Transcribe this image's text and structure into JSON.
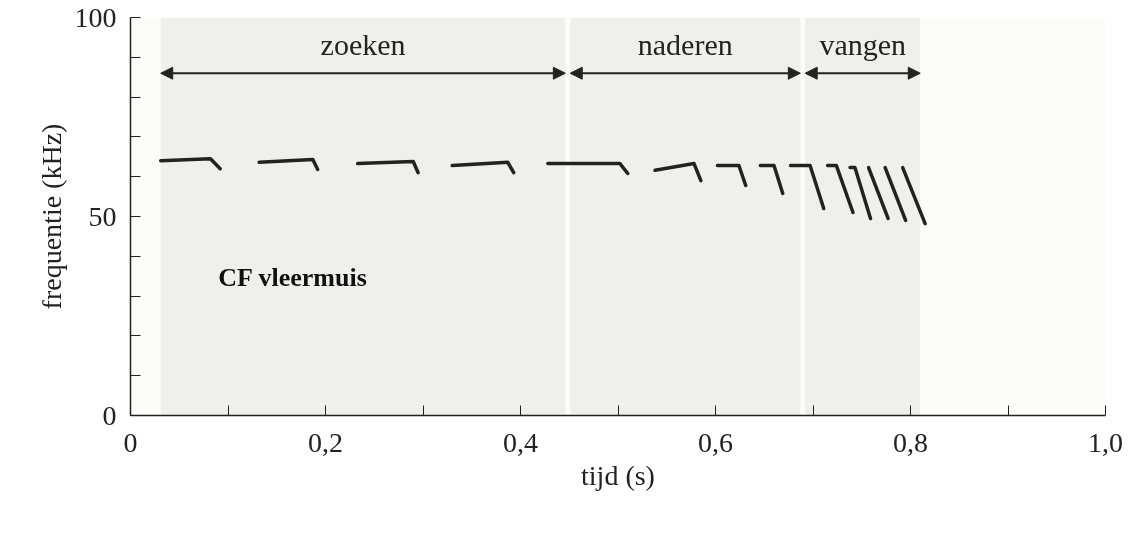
{
  "chart_data": {
    "type": "line",
    "xlabel": "tijd (s)",
    "ylabel": "frequentie (kHz)",
    "annotations": [
      "CF vleermuis"
    ],
    "xlim": [
      0,
      1.0
    ],
    "xticks": [
      0,
      {
        "value": 0.1,
        "label": null
      },
      {
        "value": 0.2,
        "label": "0,2"
      },
      {
        "value": 0.3,
        "label": null
      },
      {
        "value": 0.4,
        "label": "0,4"
      },
      {
        "value": 0.5,
        "label": null
      },
      {
        "value": 0.6,
        "label": "0,6"
      },
      {
        "value": 0.7,
        "label": null
      },
      {
        "value": 0.8,
        "label": "0,8"
      },
      {
        "value": 0.9,
        "label": null
      },
      {
        "value": 1.0,
        "label": "1,0"
      }
    ],
    "ylim": [
      0,
      100
    ],
    "yticks": [
      0,
      {
        "value": 10,
        "label": null
      },
      {
        "value": 20,
        "label": null
      },
      {
        "value": 30,
        "label": null
      },
      {
        "value": 40,
        "label": null
      },
      50,
      {
        "value": 60,
        "label": null
      },
      {
        "value": 70,
        "label": null
      },
      {
        "value": 80,
        "label": null
      },
      {
        "value": 90,
        "label": null
      },
      100
    ],
    "grid": false,
    "marker": "none",
    "line_style": "solid",
    "bands": [
      {
        "axis": "x",
        "from": 0.031,
        "to": 0.446,
        "label": "zoeken",
        "color": "#222222"
      },
      {
        "axis": "x",
        "from": 0.451,
        "to": 0.687,
        "label": "naderen",
        "color": "#222222"
      },
      {
        "axis": "x",
        "from": 0.692,
        "to": 0.81,
        "label": "vangen",
        "color": "#222222"
      }
    ],
    "series": [
      {
        "color": "#222222",
        "x": [
          0.031,
          0.082,
          0.092
        ],
        "values": [
          64,
          64.5,
          62
        ]
      },
      {
        "color": "#222222",
        "x": [
          0.132,
          0.187,
          0.192
        ],
        "values": [
          63.6,
          64.3,
          61.8
        ]
      },
      {
        "color": "#222222",
        "x": [
          0.233,
          0.29,
          0.295
        ],
        "values": [
          63.3,
          63.8,
          61
        ]
      },
      {
        "color": "#222222",
        "x": [
          0.33,
          0.387,
          0.393
        ],
        "values": [
          62.8,
          63.6,
          61
        ]
      },
      {
        "color": "#222222",
        "x": [
          0.428,
          0.502,
          0.51
        ],
        "values": [
          63.3,
          63.3,
          60.8
        ]
      },
      {
        "color": "#222222",
        "x": [
          0.538,
          0.578,
          0.585
        ],
        "values": [
          61.6,
          63.3,
          59
        ]
      },
      {
        "color": "#222222",
        "x": [
          0.602,
          0.624,
          0.631
        ],
        "values": [
          62.8,
          62.8,
          57.8
        ]
      },
      {
        "color": "#222222",
        "x": [
          0.646,
          0.66,
          0.669
        ],
        "values": [
          62.8,
          62.8,
          55.8
        ]
      },
      {
        "color": "#222222",
        "x": [
          0.677,
          0.697,
          0.711
        ],
        "values": [
          62.8,
          62.8,
          52
        ]
      },
      {
        "color": "#222222",
        "x": [
          0.715,
          0.724,
          0.741
        ],
        "values": [
          62.8,
          62.8,
          51
        ]
      },
      {
        "color": "#222222",
        "x": [
          0.738,
          0.743,
          0.759
        ],
        "values": [
          62.3,
          62.3,
          49.5
        ]
      },
      {
        "color": "#222222",
        "x": [
          0.757,
          0.777
        ],
        "values": [
          62.3,
          49.5
        ]
      },
      {
        "color": "#222222",
        "x": [
          0.774,
          0.795
        ],
        "values": [
          62.3,
          49
        ]
      },
      {
        "color": "#222222",
        "x": [
          0.792,
          0.815
        ],
        "values": [
          62.3,
          48.2
        ]
      }
    ]
  }
}
